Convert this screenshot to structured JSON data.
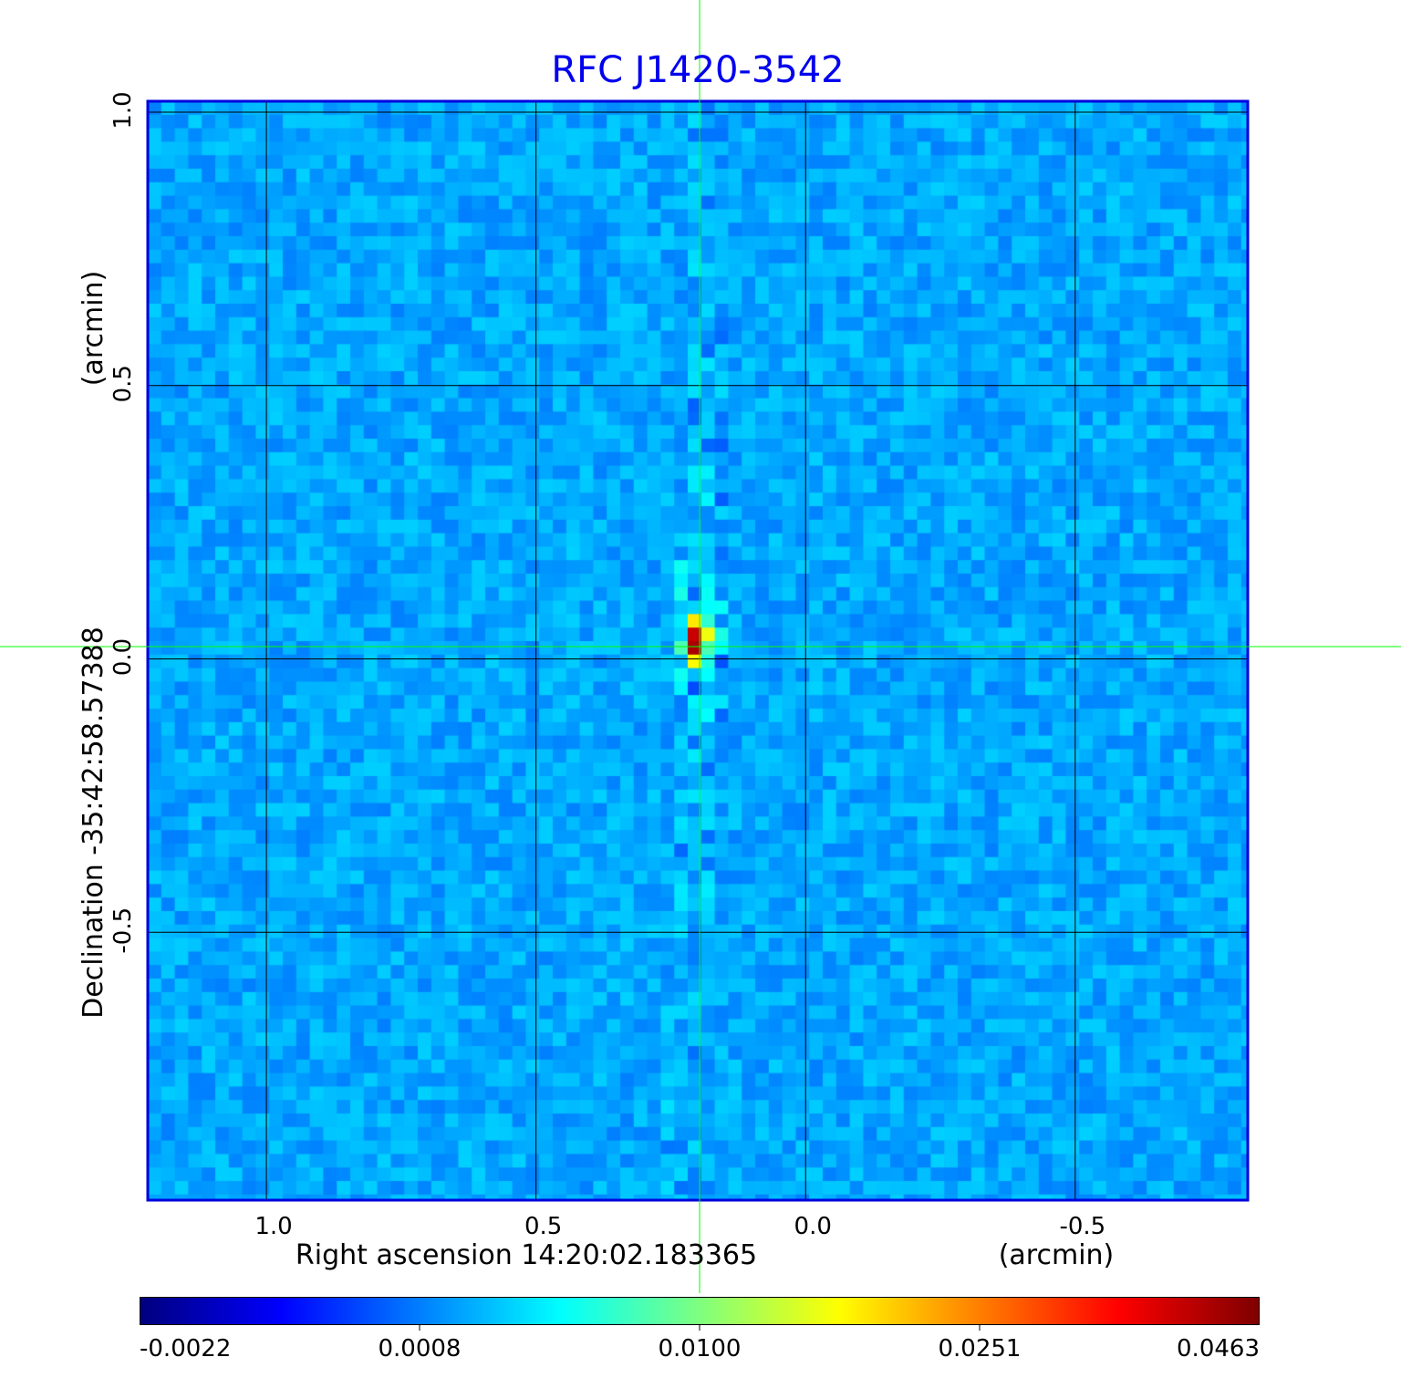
{
  "chart_data": {
    "type": "heatmap",
    "title": "RFC J1420-3542",
    "xlabel": "Right ascension  14:20:02.183365",
    "xunit": "(arcmin)",
    "ylabel": "Declination  -35:42:58.57388",
    "yunit": "(arcmin)",
    "x_ticks": [
      "1.0",
      "0.5",
      "0.0",
      "-0.5"
    ],
    "x_tick_values": [
      1.0,
      0.5,
      0.0,
      -0.5
    ],
    "y_ticks": [
      "1.0",
      "0.5",
      "0.0",
      "-0.5"
    ],
    "y_tick_values": [
      1.0,
      0.5,
      0.0,
      -0.5
    ],
    "xlim": [
      1.22,
      -0.82
    ],
    "ylim": [
      -0.99,
      1.02
    ],
    "grid": true,
    "colormap": "jet",
    "colorbar": {
      "ticks": [
        "-0.0022",
        "0.0008",
        "0.0100",
        "0.0251",
        "0.0463"
      ],
      "min": -0.0022,
      "max": 0.0463,
      "placement": "bottom"
    },
    "peak": {
      "x": 0.2,
      "y": 0.03,
      "value": 0.0463
    },
    "crosshair": {
      "x": 0.2,
      "y": 0.02
    },
    "colors": {
      "title": "#0000ee",
      "frame": "#0000dd",
      "crosshair": "#00ff00",
      "grid": "#000000"
    }
  }
}
